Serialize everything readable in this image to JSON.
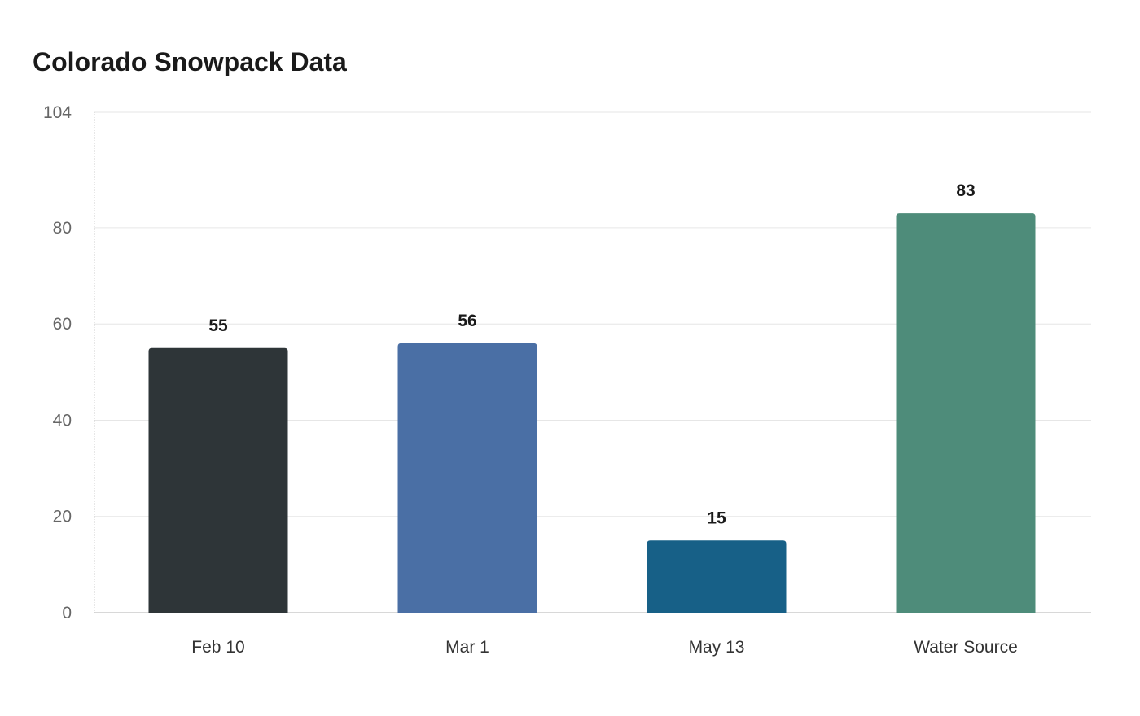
{
  "chart_data": {
    "type": "bar",
    "title": "Colorado Snowpack Data",
    "xlabel": "",
    "ylabel": "",
    "categories": [
      "Feb 10",
      "Mar 1",
      "May 13",
      "Water Source"
    ],
    "values": [
      55,
      56,
      15,
      83
    ],
    "colors": [
      "#2e3538",
      "#4a6fa5",
      "#176087",
      "#4e8c7a"
    ],
    "ylim": [
      0,
      104
    ],
    "yticks": [
      0,
      20,
      40,
      60,
      80,
      104
    ],
    "grid": true,
    "legend": "none",
    "data_labels": true
  }
}
